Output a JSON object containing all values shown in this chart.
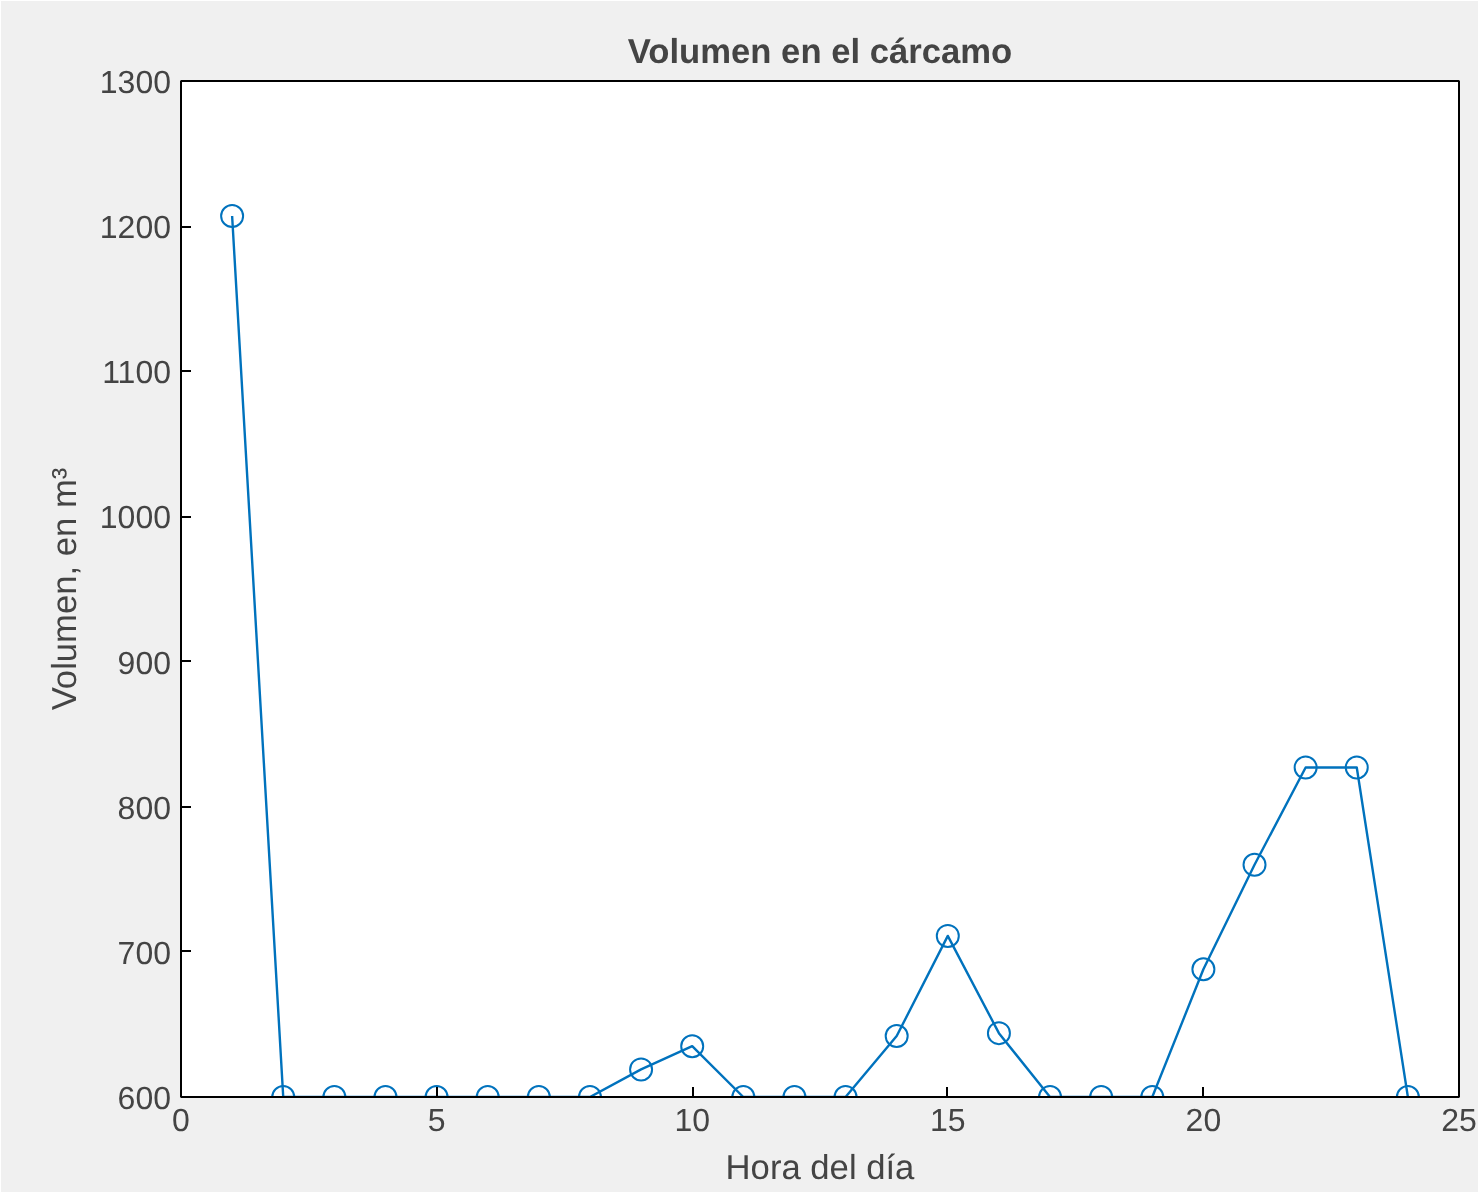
{
  "chart_data": {
    "type": "line",
    "title": "Volumen en el cárcamo",
    "xlabel": "Hora del día",
    "ylabel": "Volumen, en m³",
    "x": [
      1,
      2,
      3,
      4,
      5,
      6,
      7,
      8,
      9,
      10,
      11,
      12,
      13,
      14,
      15,
      16,
      17,
      18,
      19,
      20,
      21,
      22,
      23,
      24
    ],
    "series": [
      {
        "color": "#0072bd",
        "values": [
          1207,
          600,
          600,
          600,
          600,
          600,
          600,
          600,
          619,
          635,
          600,
          600,
          600,
          642,
          711,
          644,
          600,
          600,
          600,
          688,
          760,
          827,
          827,
          600
        ]
      }
    ],
    "xlim": [
      0,
      25
    ],
    "xticks": [
      0,
      5,
      10,
      15,
      20,
      25
    ],
    "ylim": [
      600,
      1300
    ],
    "yticks": [
      600,
      700,
      800,
      900,
      1000,
      1100,
      1200,
      1300
    ],
    "marker": "circle",
    "line_style": "solid"
  }
}
